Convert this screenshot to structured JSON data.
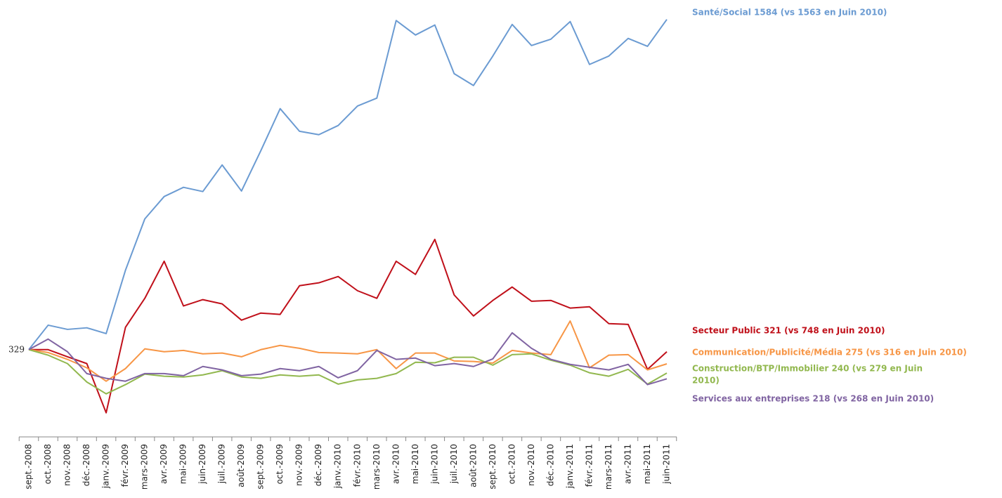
{
  "chart_data": {
    "type": "line",
    "categories": [
      "sept.-2008",
      "oct.-2008",
      "nov.-2008",
      "déc.-2008",
      "janv.-2009",
      "févr.-2009",
      "mars-2009",
      "avr.-2009",
      "mai-2009",
      "juin-2009",
      "juil.-2009",
      "août-2009",
      "sept.-2009",
      "oct.-2009",
      "nov.-2009",
      "déc.-2009",
      "janv.-2010",
      "févr.-2010",
      "mars-2010",
      "avr.-2010",
      "mai-2010",
      "juin-2010",
      "juil.-2010",
      "août-2010",
      "sept.-2010",
      "oct.-2010",
      "nov.-2010",
      "déc.-2010",
      "janv.-2011",
      "févr.-2011",
      "mars-2011",
      "avr.-2011",
      "mai-2011",
      "juin-2011"
    ],
    "ylim": [
      0,
      1650
    ],
    "series": [
      {
        "name": "Santé/Social",
        "color": "#6b9bd2",
        "label_lines": [
          "Santé/Social 1584 (vs 1563 en Juin 2010)"
        ],
        "values": [
          329,
          422,
          406,
          412,
          390,
          631,
          826,
          911,
          946,
          930,
          1031,
          932,
          1085,
          1245,
          1159,
          1146,
          1181,
          1255,
          1285,
          1580,
          1525,
          1563,
          1378,
          1333,
          1445,
          1565,
          1485,
          1509,
          1576,
          1413,
          1445,
          1512,
          1482,
          1584
        ]
      },
      {
        "name": "Secteur Public",
        "color": "#c0101a",
        "label_lines": [
          "Secteur Public 321 (vs 748 en Juin 2010)"
        ],
        "values": [
          329,
          329,
          302,
          276,
          89,
          414,
          524,
          665,
          495,
          519,
          503,
          441,
          468,
          463,
          572,
          583,
          607,
          553,
          524,
          665,
          615,
          748,
          537,
          457,
          516,
          567,
          513,
          516,
          487,
          492,
          428,
          425,
          254,
          321
        ]
      },
      {
        "name": "Communication/Publicité/Média",
        "color": "#f79646",
        "label_lines": [
          "Communication/Publicité/Média 275 (vs 316 en Juin 2010)"
        ],
        "values": [
          329,
          318,
          292,
          260,
          209,
          257,
          332,
          321,
          326,
          313,
          316,
          302,
          329,
          345,
          334,
          318,
          316,
          313,
          329,
          257,
          316,
          316,
          286,
          284,
          278,
          326,
          316,
          310,
          438,
          260,
          308,
          310,
          252,
          275
        ]
      },
      {
        "name": "Construction/BTP/Immobilier",
        "color": "#92b84f",
        "label_lines": [
          "Construction/BTP/Immobilier  240 (vs 279 en Juin",
          "2010)"
        ],
        "values": [
          329,
          308,
          276,
          206,
          161,
          196,
          236,
          228,
          225,
          233,
          249,
          225,
          220,
          233,
          228,
          233,
          198,
          214,
          220,
          238,
          281,
          279,
          300,
          300,
          270,
          310,
          313,
          289,
          270,
          241,
          228,
          254,
          198,
          240
        ]
      },
      {
        "name": "Services aux entreprises",
        "color": "#8064a2",
        "label_lines": [
          "Services aux entreprises  218 (vs 268 en Juin 2010)"
        ],
        "values": [
          329,
          369,
          321,
          238,
          220,
          209,
          238,
          238,
          230,
          265,
          252,
          230,
          236,
          257,
          249,
          265,
          222,
          249,
          326,
          292,
          297,
          268,
          276,
          265,
          294,
          393,
          334,
          292,
          273,
          262,
          252,
          273,
          196,
          218
        ]
      }
    ],
    "annotations": [
      {
        "text": "329",
        "category": "sept.-2008",
        "value": 329
      }
    ]
  }
}
